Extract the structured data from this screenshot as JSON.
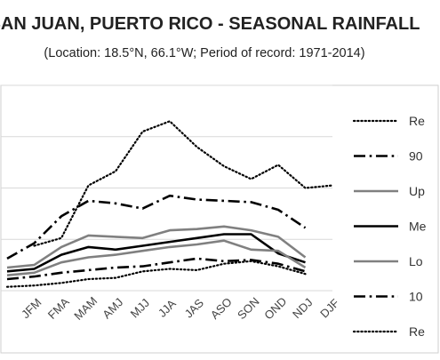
{
  "chart_data": {
    "type": "line",
    "title": "SAN JUAN, PUERTO RICO - SEASONAL RAINFALL",
    "subtitle": "(Location: 18.5°N, 66.1°W; Period of record: 1971-2014)",
    "xlabel": "",
    "ylabel": "",
    "ylim": [
      0,
      16
    ],
    "grid": true,
    "legend_position": "right",
    "categories": [
      "DJF",
      "JFM",
      "FMA",
      "MAM",
      "AMJ",
      "MJJ",
      "JJA",
      "JAS",
      "ASO",
      "SON",
      "OND",
      "NDJ",
      "DJF"
    ],
    "tick_labels": [
      "JFM",
      "FMA",
      "MAM",
      "AMJ",
      "MJJ",
      "JJA",
      "JAS",
      "ASO",
      "SON",
      "OND",
      "NDJ",
      "DJF"
    ],
    "series": [
      {
        "name": "Re",
        "style": "dotted",
        "color": "#000000",
        "width": 2.2,
        "values": [
          null,
          3.5,
          4.1,
          8.2,
          9.3,
          12.4,
          13.2,
          11.2,
          9.7,
          8.7,
          9.8,
          8.0,
          8.2
        ]
      },
      {
        "name": "90",
        "style": "dashdot",
        "color": "#000000",
        "width": 2.6,
        "values": [
          2.5,
          3.7,
          5.8,
          7.0,
          6.8,
          6.4,
          7.4,
          7.1,
          7.0,
          6.9,
          6.3,
          4.9,
          null
        ]
      },
      {
        "name": "Up",
        "style": "solid",
        "color": "#808080",
        "width": 2.6,
        "values": [
          1.8,
          2.0,
          3.4,
          4.3,
          4.2,
          4.1,
          4.7,
          4.8,
          5.0,
          4.7,
          4.2,
          2.6,
          null
        ]
      },
      {
        "name": "Me",
        "style": "solid",
        "color": "#000000",
        "width": 2.6,
        "values": [
          1.5,
          1.7,
          2.8,
          3.4,
          3.2,
          3.5,
          3.8,
          4.1,
          4.4,
          4.4,
          2.9,
          2.2,
          null
        ]
      },
      {
        "name": "Lo",
        "style": "solid",
        "color": "#808080",
        "width": 2.6,
        "values": [
          1.2,
          1.4,
          2.2,
          2.6,
          2.8,
          3.1,
          3.4,
          3.6,
          3.9,
          3.2,
          3.1,
          1.8,
          null
        ]
      },
      {
        "name": "10",
        "style": "dashdot",
        "color": "#000000",
        "width": 2.6,
        "values": [
          0.9,
          1.1,
          1.4,
          1.6,
          1.8,
          1.9,
          2.2,
          2.5,
          2.3,
          2.4,
          2.1,
          1.5,
          null
        ]
      },
      {
        "name": "Re",
        "style": "dotted",
        "color": "#000000",
        "width": 2.2,
        "values": [
          0.3,
          0.4,
          0.6,
          0.9,
          1.0,
          1.5,
          1.7,
          1.6,
          2.1,
          2.3,
          1.9,
          1.3,
          null
        ]
      }
    ]
  }
}
